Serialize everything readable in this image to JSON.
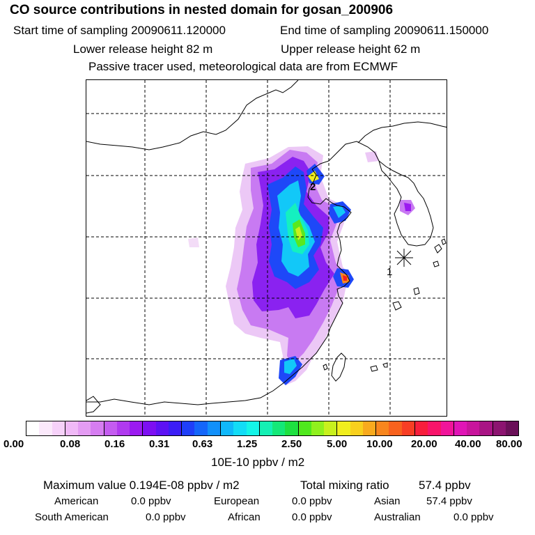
{
  "header": {
    "title": "CO  source contributions in nested domain for gosan_200906",
    "start_label": "Start time of sampling 20090611.120000",
    "end_label": "End time of sampling 20090611.150000",
    "lower_label": "Lower release height   82 m",
    "upper_label": "Upper release height   62 m",
    "tracer_note": "Passive tracer used, meteorological data are from ECMWF"
  },
  "map": {
    "markers": [
      "1",
      "2"
    ]
  },
  "colorbar": {
    "ticks": [
      "0.00",
      "0.08",
      "0.16",
      "0.31",
      "0.63",
      "1.25",
      "2.50",
      "5.00",
      "10.00",
      "20.00",
      "40.00",
      "80.00"
    ],
    "unit": "10E-10 ppbv / m2",
    "colors": [
      "#ffffff",
      "#fbe9fb",
      "#f6d1f9",
      "#f0b9f7",
      "#e49cf3",
      "#d67df1",
      "#c45cf0",
      "#b03aef",
      "#9b1bf0",
      "#7d0ff2",
      "#5d12f4",
      "#3c1ef6",
      "#1f3ff8",
      "#1466fa",
      "#1290fa",
      "#10b8fa",
      "#12dcf6",
      "#14f5e8",
      "#14f0b4",
      "#14e878",
      "#1ee040",
      "#50e81e",
      "#90f01e",
      "#c8f01e",
      "#f0ee1e",
      "#f8d01e",
      "#f8aa1e",
      "#f8861e",
      "#f8621e",
      "#f83e24",
      "#f81e3c",
      "#f8146a",
      "#f0149a",
      "#e014b6",
      "#c8149c",
      "#a81484",
      "#8c1470",
      "#6a1058"
    ]
  },
  "stats": {
    "max_label": "Maximum value  0.194E-08 ppbv / m2",
    "total_label": "Total mixing ratio",
    "total_value": "57.4 ppbv",
    "american_label": "American",
    "american_value": "0.0 ppbv",
    "european_label": "European",
    "european_value": "0.0 ppbv",
    "asian_label": "Asian",
    "asian_value": "57.4 ppbv",
    "south_american_label": "South American",
    "south_american_value": "0.0 ppbv",
    "african_label": "African",
    "african_value": "0.0 ppbv",
    "australian_label": "Australian",
    "australian_value": "0.0 ppbv"
  }
}
